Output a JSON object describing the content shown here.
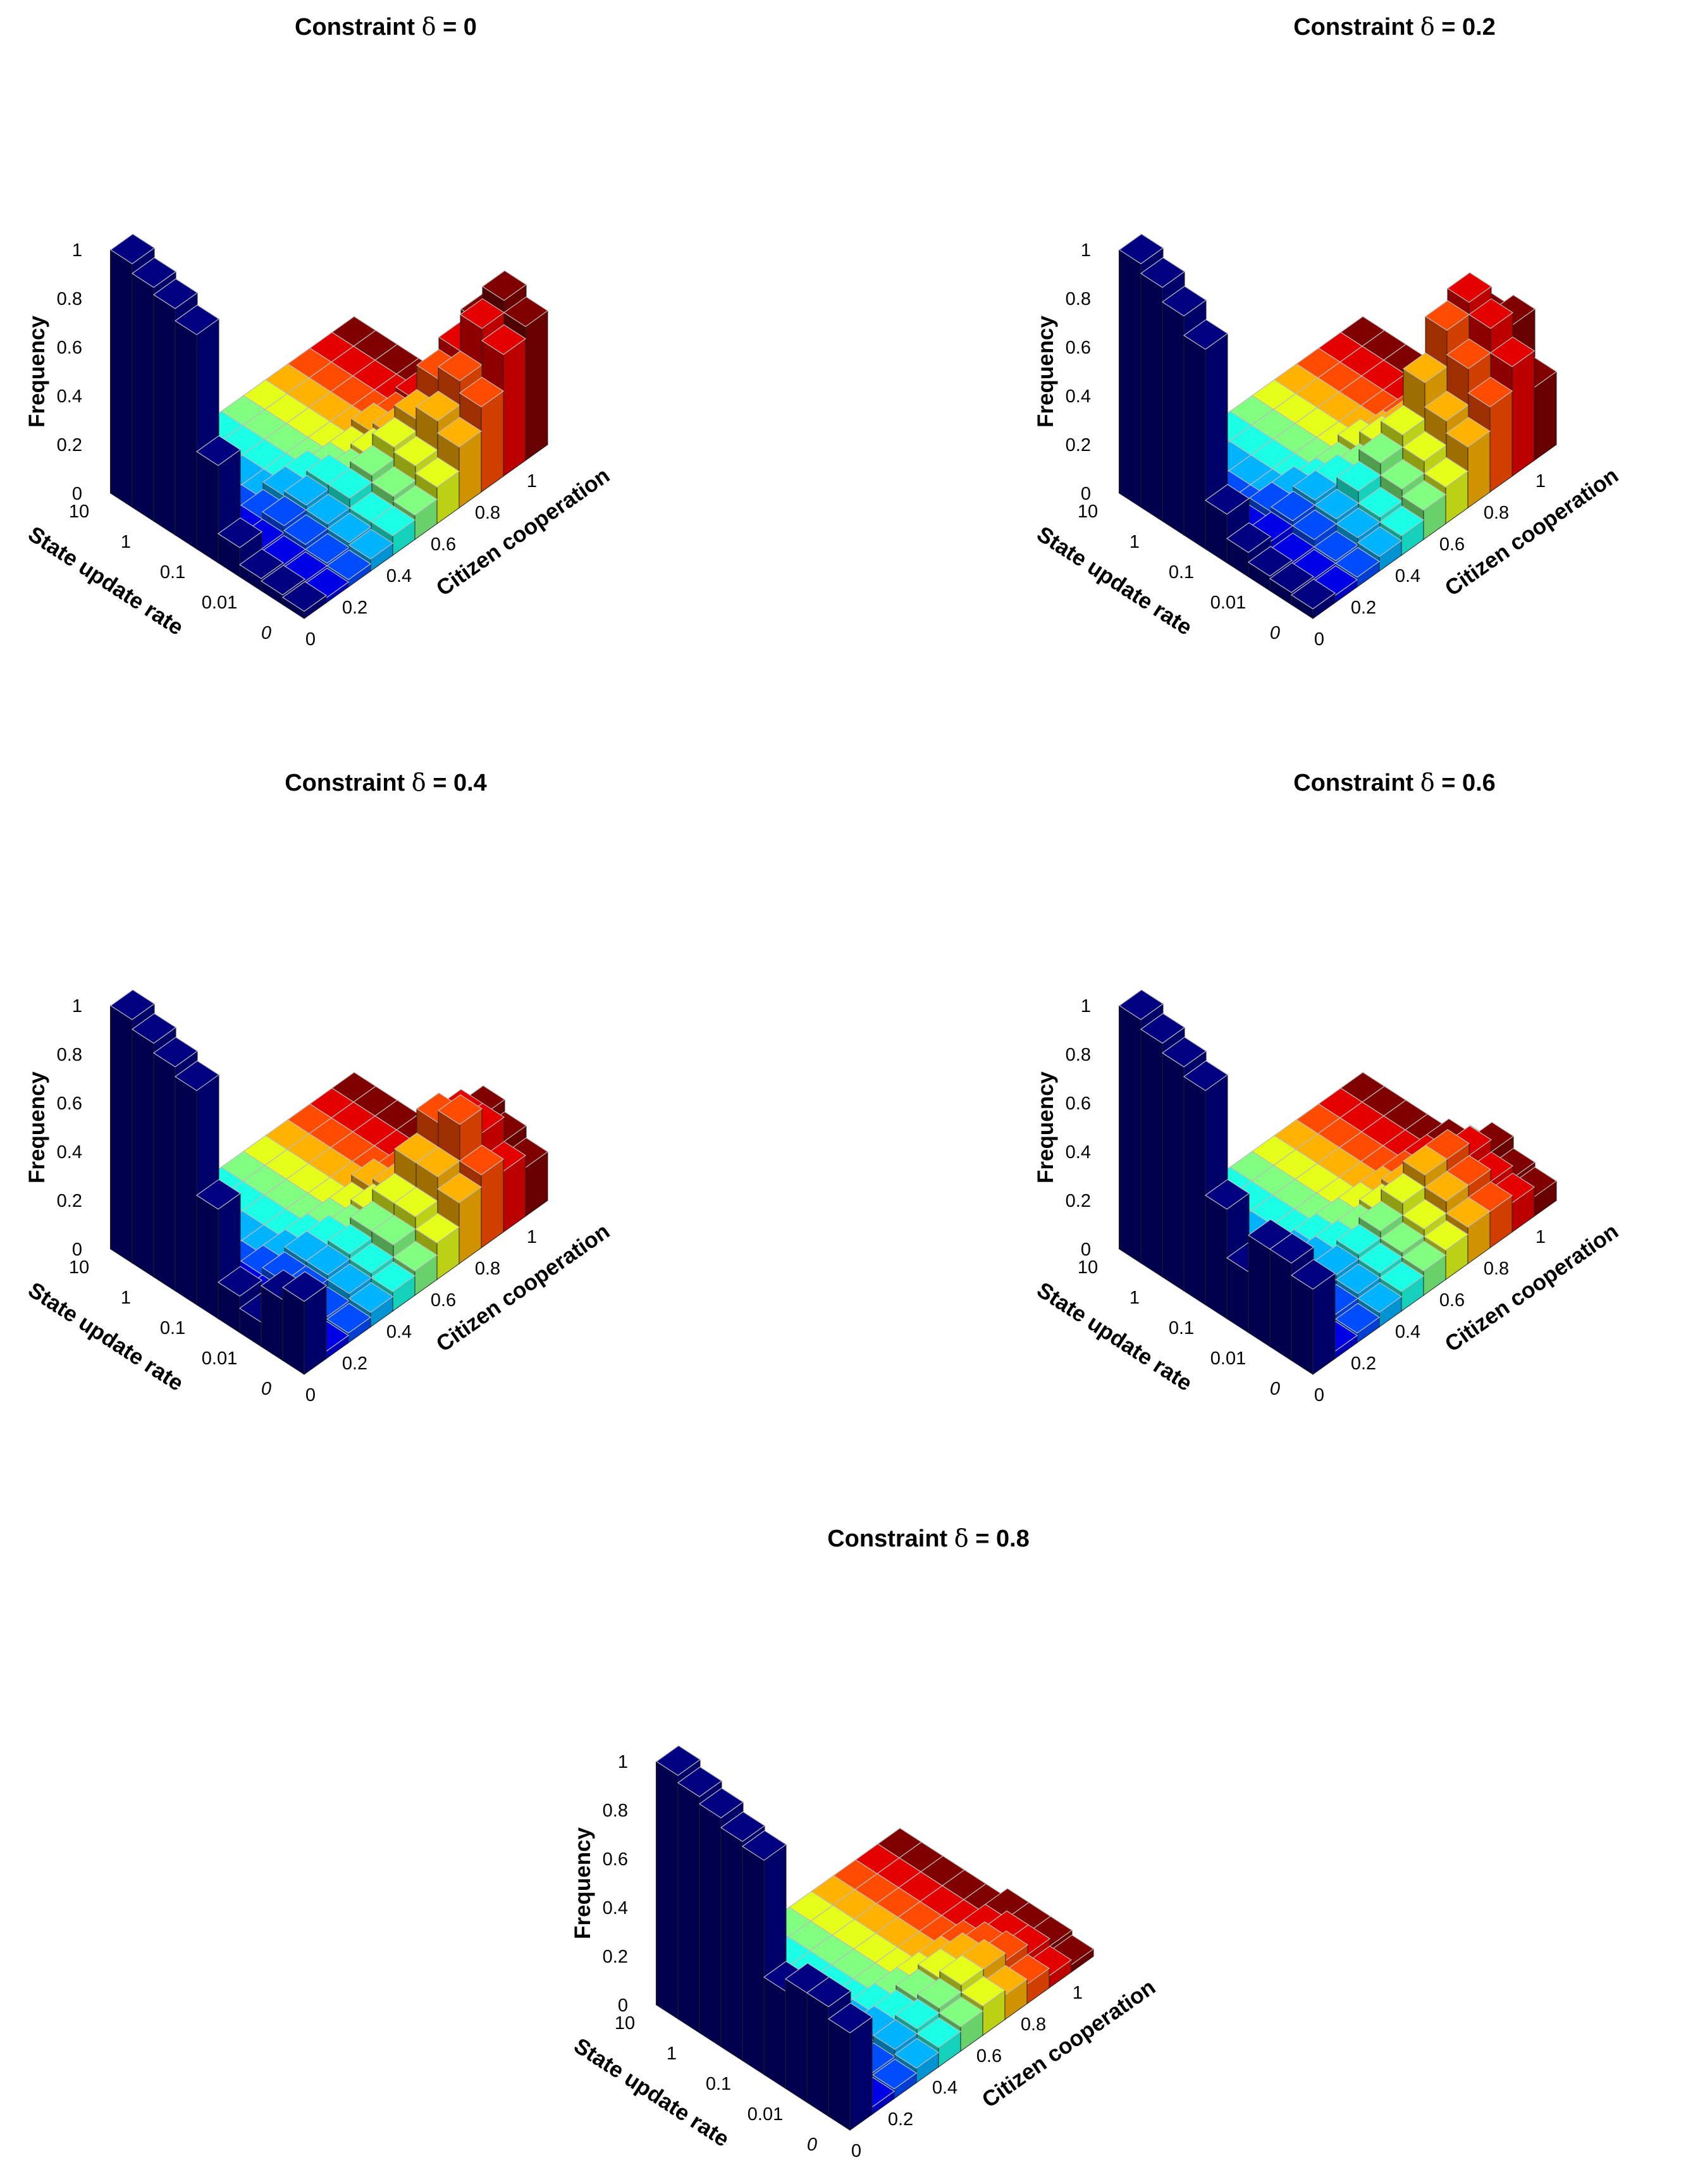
{
  "figure": {
    "panels": [
      {
        "id": "d0",
        "title_prefix": "Constraint",
        "delta_symbol": "δ",
        "title_suffix": "= 0"
      },
      {
        "id": "d02",
        "title_prefix": "Constraint",
        "delta_symbol": "δ",
        "title_suffix": "= 0.2"
      },
      {
        "id": "d04",
        "title_prefix": "Constraint",
        "delta_symbol": "δ",
        "title_suffix": "= 0.4"
      },
      {
        "id": "d06",
        "title_prefix": "Constraint",
        "delta_symbol": "δ",
        "title_suffix": "= 0.6"
      },
      {
        "id": "d08",
        "title_prefix": "Constraint",
        "delta_symbol": "δ",
        "title_suffix": "= 0.8"
      }
    ]
  },
  "chart_data": [
    {
      "type": "bar3d",
      "title": "Constraint δ = 0",
      "zlabel": "Frequency",
      "xlabel": "Citizen cooperation",
      "ylabel": "State update rate",
      "zticks": [
        "0",
        "0.2",
        "0.4",
        "0.6",
        "0.8",
        "1"
      ],
      "xticks": [
        "0",
        "0.2",
        "0.4",
        "0.6",
        "0.8",
        "1"
      ],
      "yticks": [
        "10",
        "1",
        "0.1",
        "0.01",
        "0"
      ],
      "colormap": "jet",
      "zlim": [
        0,
        1
      ],
      "cooperation_values": [
        0,
        0.1,
        0.2,
        0.3,
        0.4,
        0.5,
        0.6,
        0.7,
        0.8,
        0.9,
        1
      ],
      "update_rate_values": [
        10,
        3,
        1,
        0.3,
        0.1,
        0.03,
        0.01,
        0.003,
        0
      ],
      "frequency": [
        [
          1.0,
          0,
          0,
          0,
          0,
          0,
          0,
          0,
          0,
          0,
          0
        ],
        [
          0.96,
          0,
          0,
          0,
          0,
          0,
          0,
          0,
          0,
          0,
          0
        ],
        [
          0.93,
          0,
          0,
          0,
          0,
          0,
          0,
          0,
          0,
          0,
          0
        ],
        [
          0.88,
          0,
          0,
          0,
          0,
          0,
          0,
          0,
          0,
          0,
          0
        ],
        [
          0.4,
          0.05,
          0.05,
          0.08,
          0.08,
          0.05,
          0.05,
          0.08,
          0.06,
          0.08,
          0.05
        ],
        [
          0.12,
          0.05,
          0.08,
          0.1,
          0.12,
          0.08,
          0.1,
          0.12,
          0.1,
          0.12,
          0.1
        ],
        [
          0.05,
          0.04,
          0.06,
          0.08,
          0.12,
          0.15,
          0.2,
          0.25,
          0.35,
          0.4,
          0.45
        ],
        [
          0.04,
          0.03,
          0.04,
          0.06,
          0.08,
          0.12,
          0.18,
          0.3,
          0.4,
          0.55,
          0.6
        ],
        [
          0.03,
          0.02,
          0.03,
          0.05,
          0.08,
          0.1,
          0.15,
          0.25,
          0.35,
          0.5,
          0.55
        ]
      ]
    },
    {
      "type": "bar3d",
      "title": "Constraint δ = 0.2",
      "zlabel": "Frequency",
      "xlabel": "Citizen cooperation",
      "ylabel": "State update rate",
      "zticks": [
        "0",
        "0.2",
        "0.4",
        "0.6",
        "0.8",
        "1"
      ],
      "xticks": [
        "0",
        "0.2",
        "0.4",
        "0.6",
        "0.8",
        "1"
      ],
      "yticks": [
        "10",
        "1",
        "0.1",
        "0.01",
        "0"
      ],
      "colormap": "jet",
      "zlim": [
        0,
        1
      ],
      "cooperation_values": [
        0,
        0.1,
        0.2,
        0.3,
        0.4,
        0.5,
        0.6,
        0.7,
        0.8,
        0.9,
        1
      ],
      "update_rate_values": [
        10,
        3,
        1,
        0.3,
        0.1,
        0.03,
        0.01,
        0.003,
        0
      ],
      "frequency": [
        [
          1.0,
          0,
          0,
          0,
          0,
          0,
          0,
          0,
          0,
          0,
          0
        ],
        [
          0.96,
          0,
          0,
          0,
          0,
          0,
          0,
          0,
          0,
          0,
          0
        ],
        [
          0.9,
          0,
          0,
          0,
          0,
          0,
          0,
          0,
          0,
          0,
          0
        ],
        [
          0.82,
          0,
          0,
          0,
          0,
          0,
          0,
          0,
          0,
          0,
          0
        ],
        [
          0.2,
          0.05,
          0.08,
          0.08,
          0.05,
          0.05,
          0.08,
          0.05,
          0.05,
          0.05,
          0.05
        ],
        [
          0.1,
          0.08,
          0.1,
          0.12,
          0.12,
          0.1,
          0.15,
          0.15,
          0.2,
          0.25,
          0.2
        ],
        [
          0.06,
          0.05,
          0.08,
          0.1,
          0.15,
          0.2,
          0.25,
          0.4,
          0.55,
          0.6,
          0.45
        ],
        [
          0.05,
          0.04,
          0.05,
          0.08,
          0.1,
          0.15,
          0.2,
          0.3,
          0.45,
          0.55,
          0.5
        ],
        [
          0.04,
          0.03,
          0.04,
          0.06,
          0.08,
          0.12,
          0.15,
          0.25,
          0.35,
          0.45,
          0.3
        ]
      ]
    },
    {
      "type": "bar3d",
      "title": "Constraint δ = 0.4",
      "zlabel": "Frequency",
      "xlabel": "Citizen cooperation",
      "ylabel": "State update rate",
      "zticks": [
        "0",
        "0.2",
        "0.4",
        "0.6",
        "0.8",
        "1"
      ],
      "xticks": [
        "0",
        "0.2",
        "0.4",
        "0.6",
        "0.8",
        "1"
      ],
      "yticks": [
        "10",
        "1",
        "0.1",
        "0.01",
        "0"
      ],
      "colormap": "jet",
      "zlim": [
        0,
        1
      ],
      "cooperation_values": [
        0,
        0.1,
        0.2,
        0.3,
        0.4,
        0.5,
        0.6,
        0.7,
        0.8,
        0.9,
        1
      ],
      "update_rate_values": [
        10,
        3,
        1,
        0.3,
        0.1,
        0.03,
        0.01,
        0.003,
        0
      ],
      "frequency": [
        [
          1.0,
          0,
          0,
          0,
          0,
          0,
          0,
          0,
          0,
          0,
          0
        ],
        [
          0.96,
          0,
          0,
          0,
          0,
          0,
          0,
          0,
          0,
          0,
          0
        ],
        [
          0.92,
          0,
          0,
          0,
          0,
          0,
          0,
          0,
          0,
          0,
          0
        ],
        [
          0.88,
          0,
          0,
          0,
          0,
          0,
          0,
          0,
          0,
          0,
          0
        ],
        [
          0.45,
          0.05,
          0.05,
          0.05,
          0.05,
          0.05,
          0.05,
          0.08,
          0.05,
          0.05,
          0.05
        ],
        [
          0.15,
          0.05,
          0.08,
          0.1,
          0.1,
          0.08,
          0.1,
          0.12,
          0.15,
          0.15,
          0.12
        ],
        [
          0.1,
          0.05,
          0.08,
          0.1,
          0.12,
          0.15,
          0.2,
          0.3,
          0.4,
          0.35,
          0.3
        ],
        [
          0.25,
          0.04,
          0.05,
          0.08,
          0.1,
          0.15,
          0.2,
          0.3,
          0.45,
          0.35,
          0.25
        ],
        [
          0.3,
          0.03,
          0.04,
          0.06,
          0.08,
          0.1,
          0.15,
          0.25,
          0.3,
          0.25,
          0.2
        ]
      ]
    },
    {
      "type": "bar3d",
      "title": "Constraint δ = 0.6",
      "zlabel": "Frequency",
      "xlabel": "Citizen cooperation",
      "ylabel": "State update rate",
      "zticks": [
        "0",
        "0.2",
        "0.4",
        "0.6",
        "0.8",
        "1"
      ],
      "xticks": [
        "0",
        "0.2",
        "0.4",
        "0.6",
        "0.8",
        "1"
      ],
      "yticks": [
        "10",
        "1",
        "0.1",
        "0.01",
        "0"
      ],
      "colormap": "jet",
      "zlim": [
        0,
        1
      ],
      "cooperation_values": [
        0,
        0.1,
        0.2,
        0.3,
        0.4,
        0.5,
        0.6,
        0.7,
        0.8,
        0.9,
        1
      ],
      "update_rate_values": [
        10,
        3,
        1,
        0.3,
        0.1,
        0.03,
        0.01,
        0.003,
        0
      ],
      "frequency": [
        [
          1.0,
          0,
          0,
          0,
          0,
          0,
          0,
          0,
          0,
          0,
          0
        ],
        [
          0.96,
          0,
          0,
          0,
          0,
          0,
          0,
          0,
          0,
          0,
          0
        ],
        [
          0.92,
          0,
          0,
          0,
          0,
          0,
          0,
          0,
          0,
          0,
          0
        ],
        [
          0.88,
          0,
          0,
          0,
          0,
          0,
          0,
          0,
          0,
          0,
          0
        ],
        [
          0.45,
          0.05,
          0.05,
          0.05,
          0.05,
          0.05,
          0.05,
          0.05,
          0.05,
          0.05,
          0.05
        ],
        [
          0.25,
          0.05,
          0.06,
          0.08,
          0.08,
          0.08,
          0.1,
          0.12,
          0.12,
          0.1,
          0.08
        ],
        [
          0.4,
          0.05,
          0.08,
          0.1,
          0.12,
          0.15,
          0.2,
          0.25,
          0.25,
          0.2,
          0.15
        ],
        [
          0.4,
          0.04,
          0.06,
          0.08,
          0.1,
          0.12,
          0.15,
          0.2,
          0.2,
          0.15,
          0.1
        ],
        [
          0.35,
          0.03,
          0.04,
          0.06,
          0.08,
          0.1,
          0.12,
          0.15,
          0.15,
          0.12,
          0.08
        ]
      ]
    },
    {
      "type": "bar3d",
      "title": "Constraint δ = 0.8",
      "zlabel": "Frequency",
      "xlabel": "Citizen cooperation",
      "ylabel": "State update rate",
      "zticks": [
        "0",
        "0.2",
        "0.4",
        "0.6",
        "0.8",
        "1"
      ],
      "xticks": [
        "0",
        "0.2",
        "0.4",
        "0.6",
        "0.8",
        "1"
      ],
      "yticks": [
        "10",
        "1",
        "0.1",
        "0.01",
        "0"
      ],
      "colormap": "jet",
      "zlim": [
        0,
        1
      ],
      "cooperation_values": [
        0,
        0.1,
        0.2,
        0.3,
        0.4,
        0.5,
        0.6,
        0.7,
        0.8,
        0.9,
        1
      ],
      "update_rate_values": [
        10,
        3,
        1,
        0.3,
        0.1,
        0.03,
        0.01,
        0.003,
        0
      ],
      "frequency": [
        [
          1.0,
          0,
          0,
          0,
          0,
          0,
          0,
          0,
          0,
          0,
          0
        ],
        [
          0.97,
          0,
          0,
          0,
          0,
          0,
          0,
          0,
          0,
          0,
          0
        ],
        [
          0.94,
          0,
          0,
          0,
          0,
          0,
          0,
          0,
          0,
          0,
          0
        ],
        [
          0.9,
          0,
          0,
          0,
          0,
          0,
          0,
          0,
          0,
          0,
          0
        ],
        [
          0.88,
          0,
          0,
          0,
          0,
          0,
          0,
          0,
          0,
          0,
          0
        ],
        [
          0.4,
          0.05,
          0.05,
          0.05,
          0.05,
          0.05,
          0.05,
          0.05,
          0.05,
          0.05,
          0.05
        ],
        [
          0.45,
          0.05,
          0.06,
          0.08,
          0.08,
          0.1,
          0.12,
          0.12,
          0.1,
          0.08,
          0.05
        ],
        [
          0.45,
          0.04,
          0.05,
          0.08,
          0.1,
          0.12,
          0.15,
          0.15,
          0.12,
          0.08,
          0.05
        ],
        [
          0.4,
          0.03,
          0.04,
          0.06,
          0.08,
          0.1,
          0.12,
          0.1,
          0.08,
          0.05,
          0.03
        ]
      ]
    }
  ]
}
